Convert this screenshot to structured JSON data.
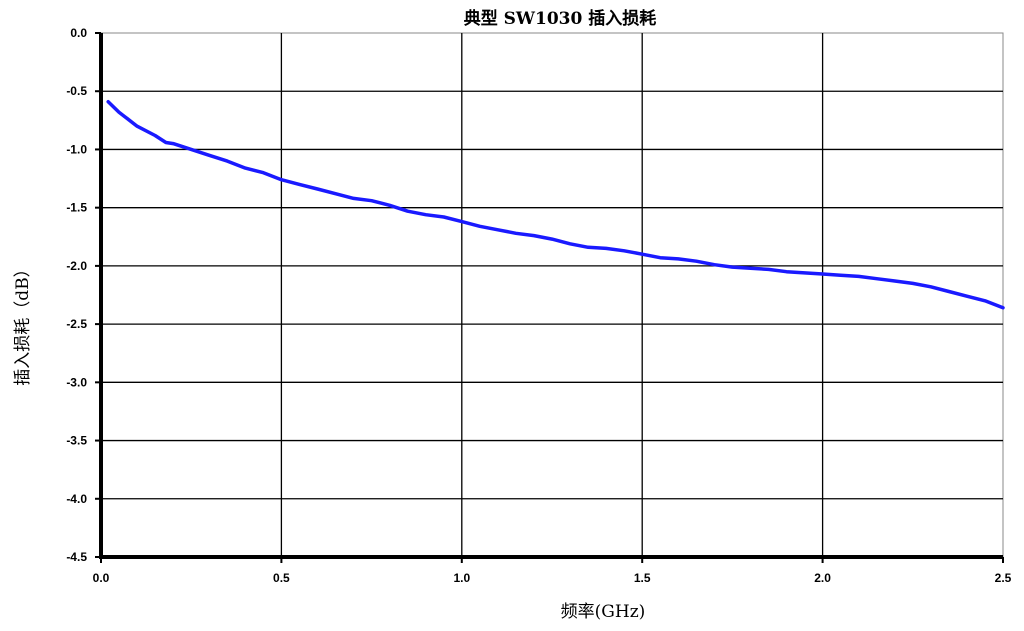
{
  "chart_data": {
    "type": "line",
    "title": "典型 SW1030 插入损耗",
    "xlabel": "频率(GHz)",
    "ylabel": "插入损耗（dB）",
    "xlim": [
      0.0,
      2.5
    ],
    "ylim": [
      -4.5,
      0.0
    ],
    "x_ticks": [
      "0.0",
      "0.5",
      "1.0",
      "1.5",
      "2.0",
      "2.5"
    ],
    "y_ticks": [
      "0.0",
      "-0.5",
      "-1.0",
      "-1.5",
      "-2.0",
      "-2.5",
      "-3.0",
      "-3.5",
      "-4.0",
      "-4.5"
    ],
    "grid": true,
    "series": [
      {
        "color": "#1a1aff",
        "x": [
          0.02,
          0.05,
          0.1,
          0.15,
          0.18,
          0.2,
          0.25,
          0.3,
          0.35,
          0.4,
          0.45,
          0.5,
          0.55,
          0.6,
          0.65,
          0.7,
          0.75,
          0.8,
          0.85,
          0.9,
          0.95,
          1.0,
          1.05,
          1.1,
          1.15,
          1.2,
          1.25,
          1.3,
          1.35,
          1.4,
          1.45,
          1.5,
          1.55,
          1.6,
          1.65,
          1.7,
          1.75,
          1.8,
          1.85,
          1.9,
          1.95,
          2.0,
          2.05,
          2.1,
          2.15,
          2.2,
          2.25,
          2.3,
          2.35,
          2.4,
          2.45,
          2.5
        ],
        "y": [
          -0.59,
          -0.68,
          -0.8,
          -0.88,
          -0.94,
          -0.95,
          -1.0,
          -1.05,
          -1.1,
          -1.16,
          -1.2,
          -1.26,
          -1.3,
          -1.34,
          -1.38,
          -1.42,
          -1.44,
          -1.48,
          -1.53,
          -1.56,
          -1.58,
          -1.62,
          -1.66,
          -1.69,
          -1.72,
          -1.74,
          -1.77,
          -1.81,
          -1.84,
          -1.85,
          -1.87,
          -1.9,
          -1.93,
          -1.94,
          -1.96,
          -1.99,
          -2.01,
          -2.02,
          -2.03,
          -2.05,
          -2.06,
          -2.07,
          -2.08,
          -2.09,
          -2.11,
          -2.13,
          -2.15,
          -2.18,
          -2.22,
          -2.26,
          -2.3,
          -2.36
        ]
      }
    ]
  }
}
